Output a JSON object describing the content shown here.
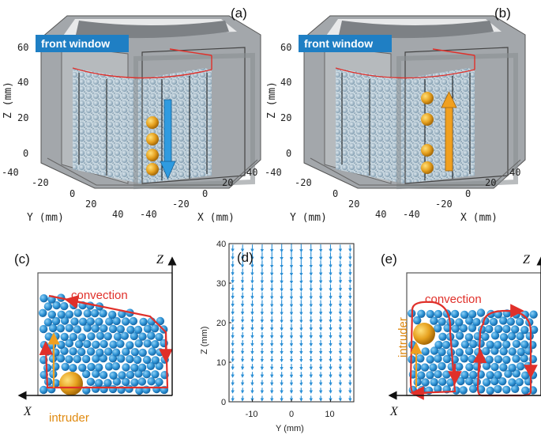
{
  "panels": {
    "a": {
      "label": "(a)"
    },
    "b": {
      "label": "(b)"
    },
    "c": {
      "label": "(c)"
    },
    "d": {
      "label": "(d)"
    },
    "e": {
      "label": "(e)"
    }
  },
  "window_label": "front window",
  "labels3d": {
    "z_axis": "Z (mm)",
    "y_axis": "Y (mm)",
    "x_axis": "X (mm)",
    "z_ticks": [
      "0",
      "20",
      "40",
      "60"
    ],
    "y_ticks": [
      "-40",
      "-20",
      "0",
      "20",
      "40"
    ],
    "x_ticks": [
      "-40",
      "-20",
      "0",
      "20",
      "40"
    ]
  },
  "schematic": {
    "convection": "convection",
    "intruder": "intruder",
    "z_label": "Z",
    "x_label": "X"
  },
  "colors": {
    "particle": "#3a9ad9",
    "intruder": "#e0a020",
    "arrow_red": "#e0302a",
    "arrow_blue": "#2f9be0",
    "arrow_orange": "#f0a020",
    "window_bg": "#1f7fc4"
  },
  "chart_data": {
    "type": "quiver",
    "title": "",
    "xlabel": "Y (mm)",
    "ylabel": "Z (mm)",
    "xlim": [
      -16,
      16
    ],
    "ylim": [
      0,
      40
    ],
    "x_ticks": [
      -10,
      0,
      10
    ],
    "y_ticks": [
      0,
      10,
      20,
      30,
      40
    ],
    "grid_x": [
      -15,
      -12.5,
      -10,
      -7.5,
      -5,
      -2.5,
      0,
      2.5,
      5,
      7.5,
      10,
      12.5,
      15
    ],
    "grid_y": [
      1,
      3,
      5,
      7,
      9,
      11,
      13,
      15,
      17,
      19,
      21,
      23,
      25,
      27,
      29,
      31,
      33,
      35,
      37,
      39
    ],
    "flow": "downward velocity field, strongest near the top and centre, weakening toward the bottom"
  }
}
